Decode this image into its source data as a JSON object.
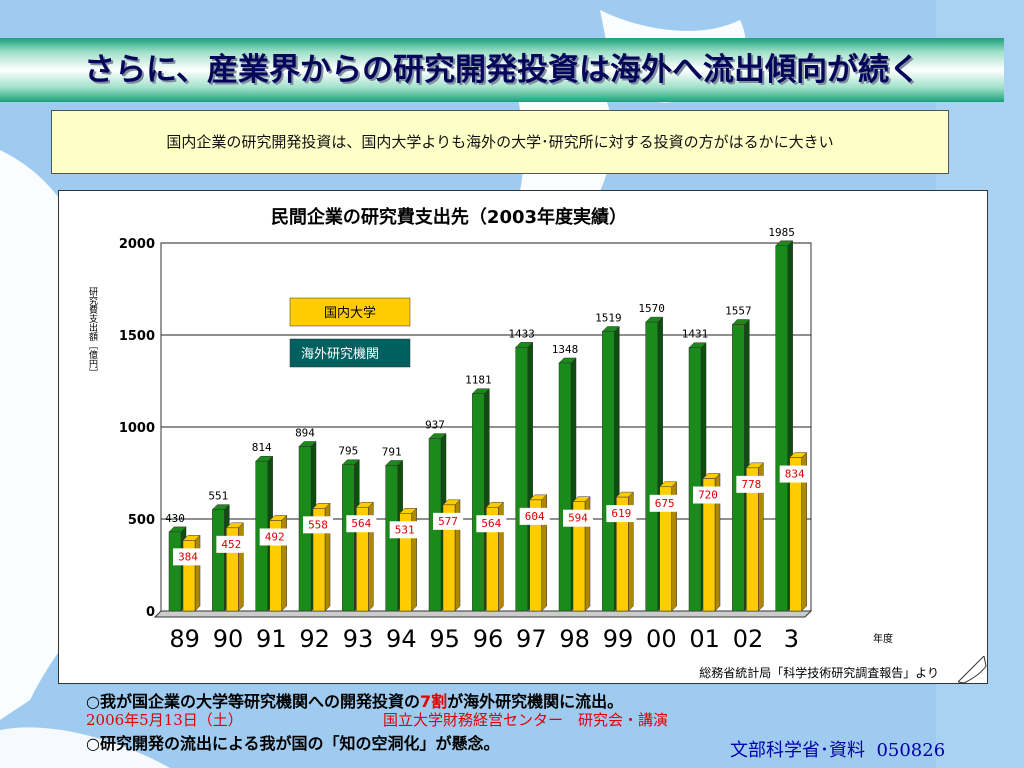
{
  "title": "さらに、産業界からの研究開発投資は海外へ流出傾向が続く",
  "subtitle": "国内企業の研究開発投資は、国内大学よりも海外の大学･研究所に対する投資の方がはるかに大きい",
  "chart_data": {
    "type": "bar",
    "title": "民間企業の研究費支出先（2003年度実績）",
    "categories": [
      "89",
      "90",
      "91",
      "92",
      "93",
      "94",
      "95",
      "96",
      "97",
      "98",
      "99",
      "00",
      "01",
      "02",
      "3"
    ],
    "series": [
      {
        "name": "海外研究機関",
        "color": "#1a8a1a",
        "values": [
          430,
          551,
          814,
          894,
          795,
          791,
          937,
          1181,
          1433,
          1348,
          1519,
          1570,
          1431,
          1557,
          1985
        ],
        "labels": [
          "430",
          "551",
          "814",
          "894",
          "795",
          "791",
          "937",
          "1181",
          "1433",
          "1348",
          "1519",
          "1570",
          "1431",
          "1557",
          "1985"
        ]
      },
      {
        "name": "国内大学",
        "color": "#ffcc00",
        "values": [
          384,
          452,
          492,
          558,
          564,
          531,
          577,
          564,
          604,
          594,
          619,
          675,
          720,
          778,
          834
        ]
      }
    ],
    "xlabel": "年度",
    "ylabel": "研究費支出額［億円］",
    "ylim": [
      0,
      2000
    ],
    "yticks": [
      0,
      500,
      1000,
      1500,
      2000
    ],
    "grid": true,
    "legend_placement": "top-left",
    "source": "総務省統計局「科学技術研究調査報告」より"
  },
  "notes": {
    "line1_a": "○我が国企業の大学等研究機関への開発投資の",
    "line1_b": "7割",
    "line1_c": "が海外研究機関に流出。",
    "date": "2006年5月13日（土）",
    "venue": "国立大学財務経営センター　研究会・講演",
    "line3": "○研究開発の流出による我が国の「知の空洞化」が懸念。"
  },
  "footer": {
    "org": "文部科学省･資料",
    "code": "050826"
  }
}
